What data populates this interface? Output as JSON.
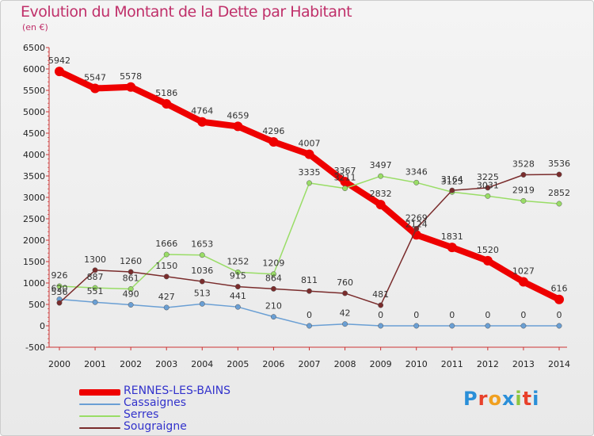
{
  "title": "Evolution du Montant de la Dette par Habitant",
  "subtitle": "(en €)",
  "logo": {
    "text": "Proxiti",
    "colors": [
      "#2a8fd8",
      "#e8412b",
      "#f0a020",
      "#2a8fd8",
      "#8cc63f",
      "#e8412b",
      "#2a8fd8"
    ]
  },
  "chart_data": {
    "type": "line",
    "title": "Evolution du Montant de la Dette par Habitant",
    "ylabel": "(en €)",
    "categories": [
      "2000",
      "2001",
      "2002",
      "2003",
      "2004",
      "2005",
      "2006",
      "2007",
      "2008",
      "2009",
      "2010",
      "2011",
      "2012",
      "2013",
      "2014"
    ],
    "ylim": [
      -500,
      6500
    ],
    "yticks": [
      -500,
      0,
      500,
      1000,
      1500,
      2000,
      2500,
      3000,
      3500,
      4000,
      4500,
      5000,
      5500,
      6000,
      6500
    ],
    "grid": false,
    "legend_position": "bottom-left",
    "series": [
      {
        "name": "RENNES-LES-BAINS",
        "color": "#ee0000",
        "width": 8,
        "values": [
          5942,
          5547,
          5578,
          5186,
          4764,
          4659,
          4296,
          4007,
          3367,
          2832,
          2124,
          1831,
          1520,
          1027,
          616
        ]
      },
      {
        "name": "Cassaignes",
        "color": "#6a9fd4",
        "width": 1.5,
        "values": [
          620,
          551,
          490,
          427,
          513,
          441,
          210,
          0,
          42,
          0,
          0,
          0,
          0,
          0,
          0
        ]
      },
      {
        "name": "Serres",
        "color": "#99dd66",
        "width": 1.5,
        "values": [
          926,
          887,
          861,
          1666,
          1653,
          1252,
          1209,
          3335,
          3211,
          3497,
          3346,
          3125,
          3031,
          2919,
          2852
        ]
      },
      {
        "name": "Sougraigne",
        "color": "#7a2c2c",
        "width": 1.5,
        "values": [
          536,
          1300,
          1260,
          1150,
          1036,
          915,
          864,
          811,
          760,
          481,
          2269,
          3164,
          3225,
          3528,
          3536
        ]
      }
    ]
  }
}
